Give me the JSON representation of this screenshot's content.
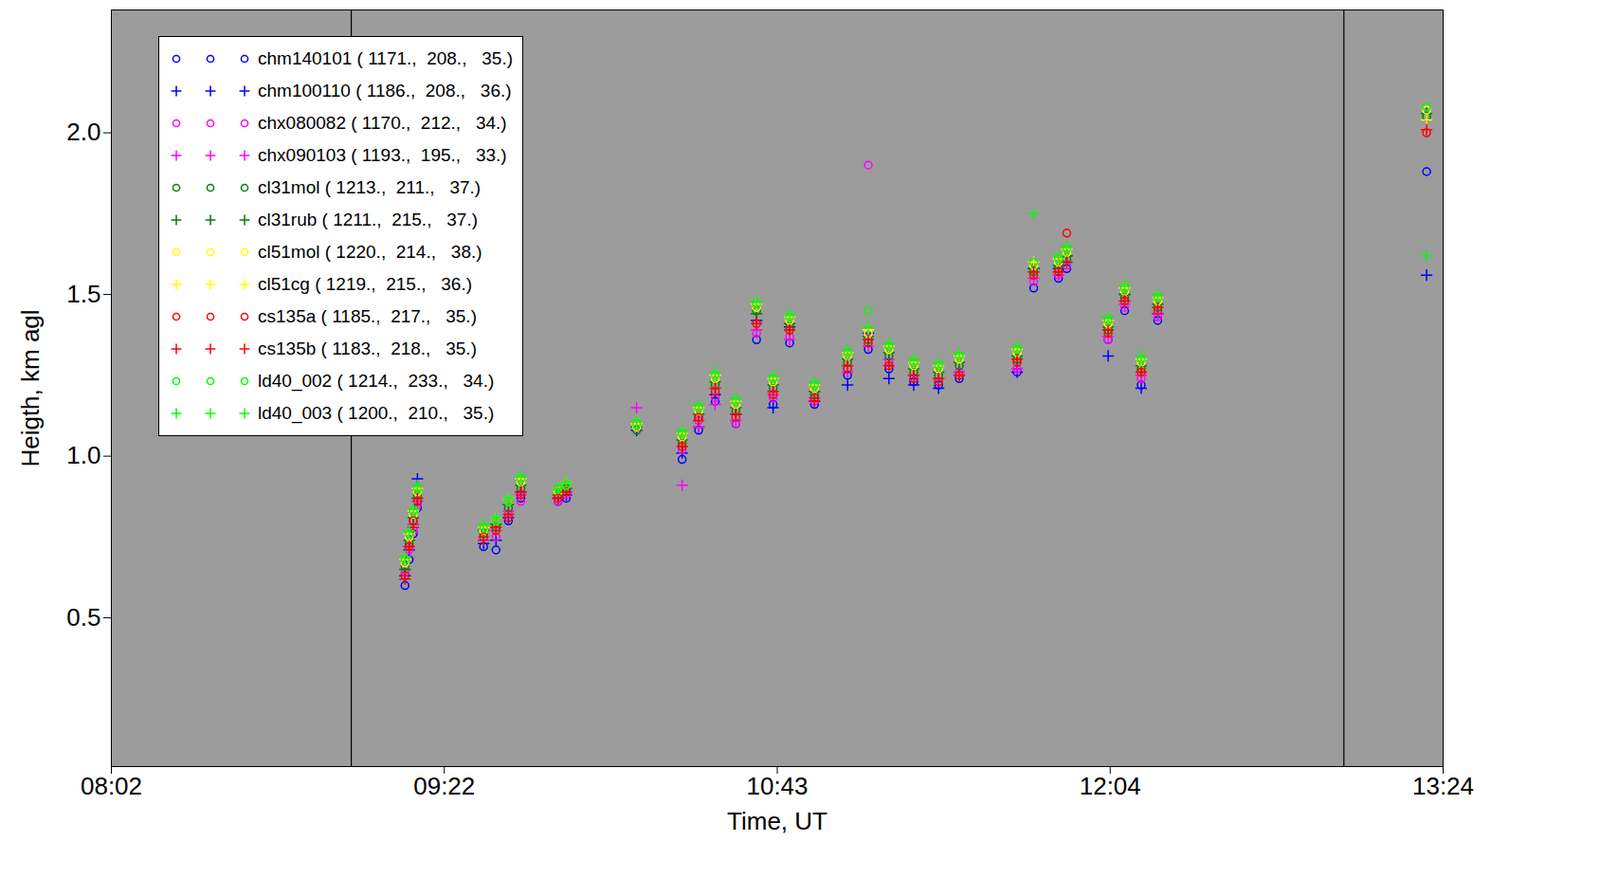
{
  "chart_data": {
    "type": "scatter",
    "xlabel": "Time, UT",
    "ylabel": "Heigth, km agl",
    "xlim": [
      482,
      804
    ],
    "xticks": [
      {
        "value": 482,
        "label": "08:02"
      },
      {
        "value": 562.5,
        "label": "09:22"
      },
      {
        "value": 643,
        "label": "10:43"
      },
      {
        "value": 723.5,
        "label": "12:04"
      },
      {
        "value": 804,
        "label": "13:24"
      }
    ],
    "ylim": [
      0.04,
      2.38
    ],
    "yticks": [
      0.5,
      {
        "value": 1,
        "label": "1.0"
      },
      1.5,
      {
        "value": 2,
        "label": "2.0"
      }
    ],
    "vlines": [
      540,
      780
    ],
    "legend": "top-left",
    "x": [
      553,
      554,
      555,
      556,
      572,
      575,
      578,
      581,
      590,
      592,
      609,
      620,
      624,
      628,
      633,
      638,
      642,
      646,
      652,
      660,
      665,
      670,
      676,
      682,
      687,
      701,
      705,
      711,
      713,
      723,
      727,
      731,
      735,
      800
    ],
    "series": [
      {
        "name": "chm140101 ( 1171.,  208.,   35.)",
        "color": "#0000ff",
        "marker": "circle",
        "values": [
          0.6,
          0.68,
          0.76,
          0.84,
          0.72,
          0.71,
          0.8,
          0.87,
          0.86,
          0.87,
          null,
          0.99,
          1.08,
          1.17,
          1.1,
          1.36,
          1.16,
          1.35,
          1.16,
          1.25,
          1.33,
          1.27,
          1.23,
          1.22,
          1.24,
          1.26,
          1.52,
          1.55,
          1.58,
          1.36,
          1.45,
          1.22,
          1.42,
          1.88
        ]
      },
      {
        "name": "chm100110 ( 1186.,  208.,   36.)",
        "color": "#0000ff",
        "marker": "plus",
        "values": [
          0.63,
          0.71,
          0.79,
          0.93,
          0.73,
          0.74,
          0.81,
          0.89,
          0.87,
          0.88,
          1.08,
          1.01,
          1.09,
          1.19,
          1.13,
          1.42,
          1.15,
          1.4,
          1.17,
          1.22,
          1.38,
          1.24,
          1.22,
          1.21,
          1.25,
          1.26,
          1.58,
          1.58,
          1.62,
          1.31,
          1.5,
          1.21,
          1.44,
          1.56
        ]
      },
      {
        "name": "chx080082 ( 1170.,  212.,   34.)",
        "color": "#ff00ff",
        "marker": "circle",
        "values": [
          0.64,
          0.71,
          0.77,
          0.85,
          null,
          0.75,
          0.82,
          0.86,
          0.86,
          0.88,
          null,
          1.02,
          1.11,
          1.18,
          1.1,
          1.38,
          1.18,
          1.37,
          1.17,
          1.27,
          1.9,
          1.29,
          1.24,
          1.23,
          1.26,
          1.27,
          1.54,
          1.56,
          1.59,
          1.36,
          1.46,
          1.24,
          1.43,
          null
        ]
      },
      {
        "name": "chx090103 ( 1193.,  195.,   33.)",
        "color": "#ff00ff",
        "marker": "plus",
        "values": [
          0.65,
          0.72,
          0.79,
          0.86,
          0.75,
          0.77,
          0.83,
          0.88,
          0.87,
          0.89,
          1.15,
          0.91,
          1.09,
          1.16,
          1.11,
          1.39,
          1.19,
          1.36,
          1.18,
          1.26,
          1.34,
          1.3,
          1.25,
          1.24,
          1.26,
          1.27,
          1.55,
          1.56,
          1.6,
          1.37,
          1.47,
          1.25,
          1.44,
          null
        ]
      },
      {
        "name": "cl31mol ( 1213.,  211.,   37.)",
        "color": "#008000",
        "marker": "circle",
        "values": [
          0.66,
          0.73,
          0.8,
          0.88,
          0.76,
          0.78,
          0.84,
          0.9,
          0.88,
          0.9,
          1.08,
          1.04,
          1.12,
          1.22,
          1.14,
          1.45,
          1.21,
          1.4,
          1.19,
          1.29,
          1.36,
          1.31,
          1.26,
          1.25,
          1.28,
          1.3,
          1.57,
          1.58,
          1.61,
          1.39,
          1.49,
          1.27,
          1.46,
          2.05
        ]
      },
      {
        "name": "cl31rub ( 1211.,  215.,   37.)",
        "color": "#008000",
        "marker": "plus",
        "values": [
          0.65,
          0.74,
          0.81,
          0.87,
          0.77,
          0.79,
          0.85,
          0.91,
          0.88,
          0.9,
          1.09,
          1.05,
          1.13,
          1.23,
          1.15,
          1.44,
          1.22,
          1.41,
          1.2,
          1.3,
          1.37,
          1.32,
          1.27,
          1.26,
          1.29,
          1.31,
          1.58,
          1.59,
          1.62,
          1.4,
          1.5,
          1.28,
          1.47,
          2.06
        ]
      },
      {
        "name": "cl51mol ( 1220.,  214.,   38.)",
        "color": "#ffff00",
        "marker": "circle",
        "values": [
          0.67,
          0.75,
          0.82,
          0.89,
          0.77,
          0.8,
          0.86,
          0.92,
          0.89,
          0.91,
          1.09,
          1.06,
          1.14,
          1.24,
          1.16,
          1.46,
          1.23,
          1.42,
          1.21,
          1.31,
          1.38,
          1.33,
          1.28,
          1.27,
          1.3,
          1.32,
          1.59,
          1.6,
          1.63,
          1.41,
          1.51,
          1.29,
          1.48,
          2.07
        ]
      },
      {
        "name": "cl51cg ( 1219.,  215.,   36.)",
        "color": "#ffff00",
        "marker": "plus",
        "values": [
          0.68,
          0.76,
          0.83,
          0.9,
          0.78,
          0.81,
          0.87,
          0.93,
          0.9,
          0.92,
          1.1,
          1.07,
          1.15,
          1.25,
          1.17,
          1.47,
          1.24,
          1.43,
          1.22,
          1.32,
          1.39,
          1.34,
          1.29,
          1.28,
          1.31,
          1.33,
          1.6,
          1.61,
          1.64,
          1.42,
          1.52,
          1.3,
          1.49,
          2.04
        ]
      },
      {
        "name": "cs135a ( 1185.,  217.,   35.)",
        "color": "#ff0000",
        "marker": "circle",
        "values": [
          0.63,
          0.72,
          0.8,
          0.86,
          0.75,
          0.77,
          0.81,
          0.88,
          0.87,
          0.89,
          null,
          1.03,
          1.12,
          1.2,
          1.12,
          1.41,
          1.19,
          1.39,
          1.18,
          1.27,
          1.35,
          1.28,
          1.24,
          1.23,
          1.25,
          1.29,
          1.56,
          1.57,
          1.69,
          1.38,
          1.48,
          1.26,
          1.45,
          2.0
        ]
      },
      {
        "name": "cs135b ( 1183.,  218.,   35.)",
        "color": "#ff0000",
        "marker": "plus",
        "values": [
          0.62,
          0.72,
          0.78,
          0.87,
          0.74,
          0.78,
          0.82,
          0.89,
          0.87,
          0.89,
          null,
          1.03,
          1.11,
          1.21,
          1.13,
          1.41,
          1.2,
          1.39,
          1.17,
          1.28,
          1.36,
          1.28,
          1.25,
          1.24,
          1.25,
          1.3,
          1.57,
          1.57,
          1.6,
          1.39,
          1.48,
          1.26,
          1.46,
          2.01
        ]
      },
      {
        "name": "ld40_002 ( 1214.,  233.,   34.)",
        "color": "#00ff00",
        "marker": "circle",
        "values": [
          0.68,
          0.76,
          0.83,
          0.9,
          0.78,
          0.8,
          0.86,
          0.93,
          0.9,
          0.91,
          1.1,
          1.07,
          1.15,
          1.25,
          1.17,
          1.47,
          1.24,
          1.43,
          1.22,
          1.32,
          1.45,
          1.34,
          1.29,
          1.28,
          1.31,
          1.33,
          1.6,
          1.61,
          1.64,
          1.42,
          1.52,
          1.3,
          1.49,
          2.08
        ]
      },
      {
        "name": "ld40_003 ( 1200.,  210.,   35.)",
        "color": "#00ff00",
        "marker": "plus",
        "values": [
          0.69,
          0.77,
          0.84,
          0.91,
          0.79,
          0.81,
          0.87,
          0.94,
          0.9,
          0.92,
          1.11,
          1.08,
          1.16,
          1.26,
          1.18,
          1.48,
          1.25,
          1.44,
          1.23,
          1.33,
          1.4,
          1.35,
          1.3,
          1.29,
          1.32,
          1.34,
          1.75,
          1.62,
          1.65,
          1.43,
          1.53,
          1.31,
          1.5,
          1.62
        ]
      }
    ]
  }
}
